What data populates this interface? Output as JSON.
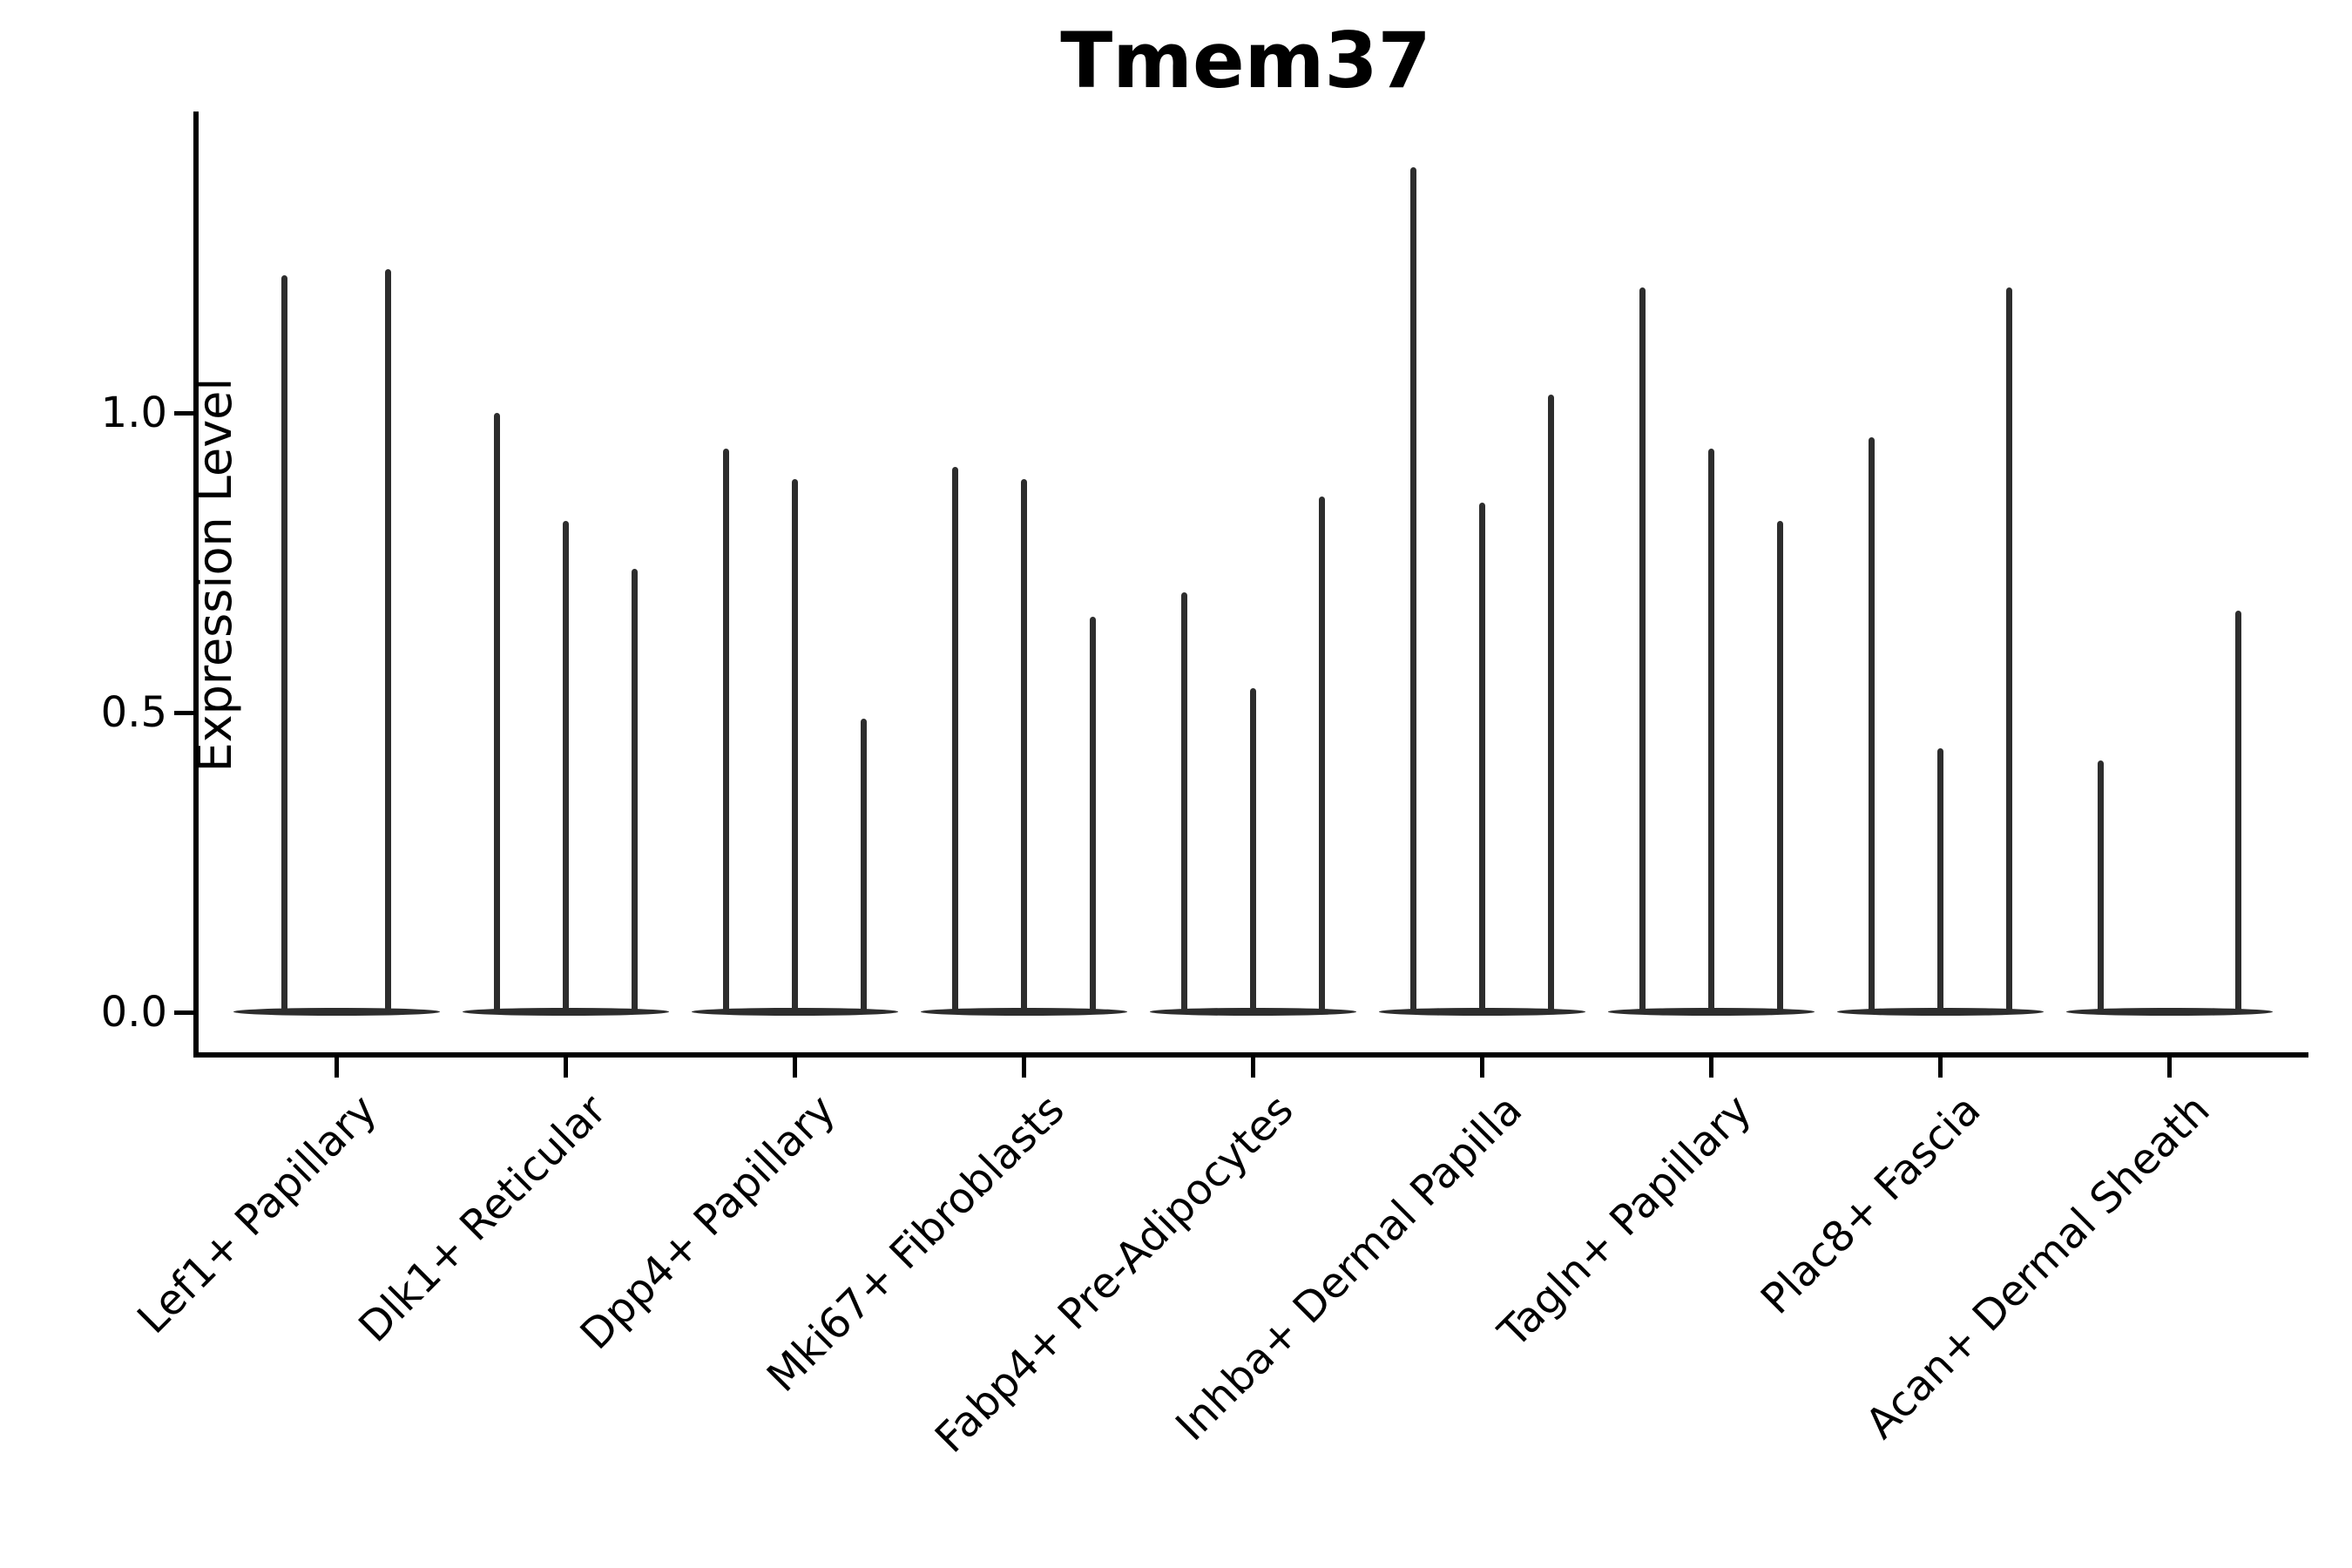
{
  "chart_data": {
    "type": "violin",
    "title": "Tmem37",
    "xlabel": "",
    "ylabel": "Expression Level",
    "ytick_labels": [
      "0.0",
      "0.5",
      "1.0"
    ],
    "ytick_values": [
      0.0,
      0.5,
      1.0
    ],
    "ylim": [
      0,
      1.5
    ],
    "grid": false,
    "legend_position": "none",
    "violin_color": "#2d2d2d",
    "axis_color": "#000000",
    "background_color": "#ffffff",
    "style_note": "Single-cell expression violin plot; each cluster shows 2-3 very narrow spike-shaped violins with a flat dense base at 0 expression; spike top equals the maximum expression value.",
    "categories": [
      {
        "label": "Lef1+ Papillary",
        "violin_max_values": [
          1.23,
          1.24
        ]
      },
      {
        "label": "Dlk1+ Reticular",
        "violin_max_values": [
          1.0,
          0.82,
          0.74
        ]
      },
      {
        "label": "Dpp4+ Papillary",
        "violin_max_values": [
          0.94,
          0.89,
          0.49
        ]
      },
      {
        "label": "Mki67+ Fibroblasts",
        "violin_max_values": [
          0.91,
          0.89,
          0.66
        ]
      },
      {
        "label": "Fabp4+ Pre-Adipocytes",
        "violin_max_values": [
          0.7,
          0.54,
          0.86
        ]
      },
      {
        "label": "Inhba+ Dermal Papilla",
        "violin_max_values": [
          1.41,
          0.85,
          1.03
        ]
      },
      {
        "label": "Tagln+ Papillary",
        "violin_max_values": [
          1.21,
          0.94,
          0.82
        ]
      },
      {
        "label": "Plac8+ Fascia",
        "violin_max_values": [
          0.96,
          0.44,
          1.21
        ]
      },
      {
        "label": "Acan+ Dermal Sheath",
        "violin_max_values": [
          0.42,
          0,
          0.67
        ]
      }
    ]
  }
}
